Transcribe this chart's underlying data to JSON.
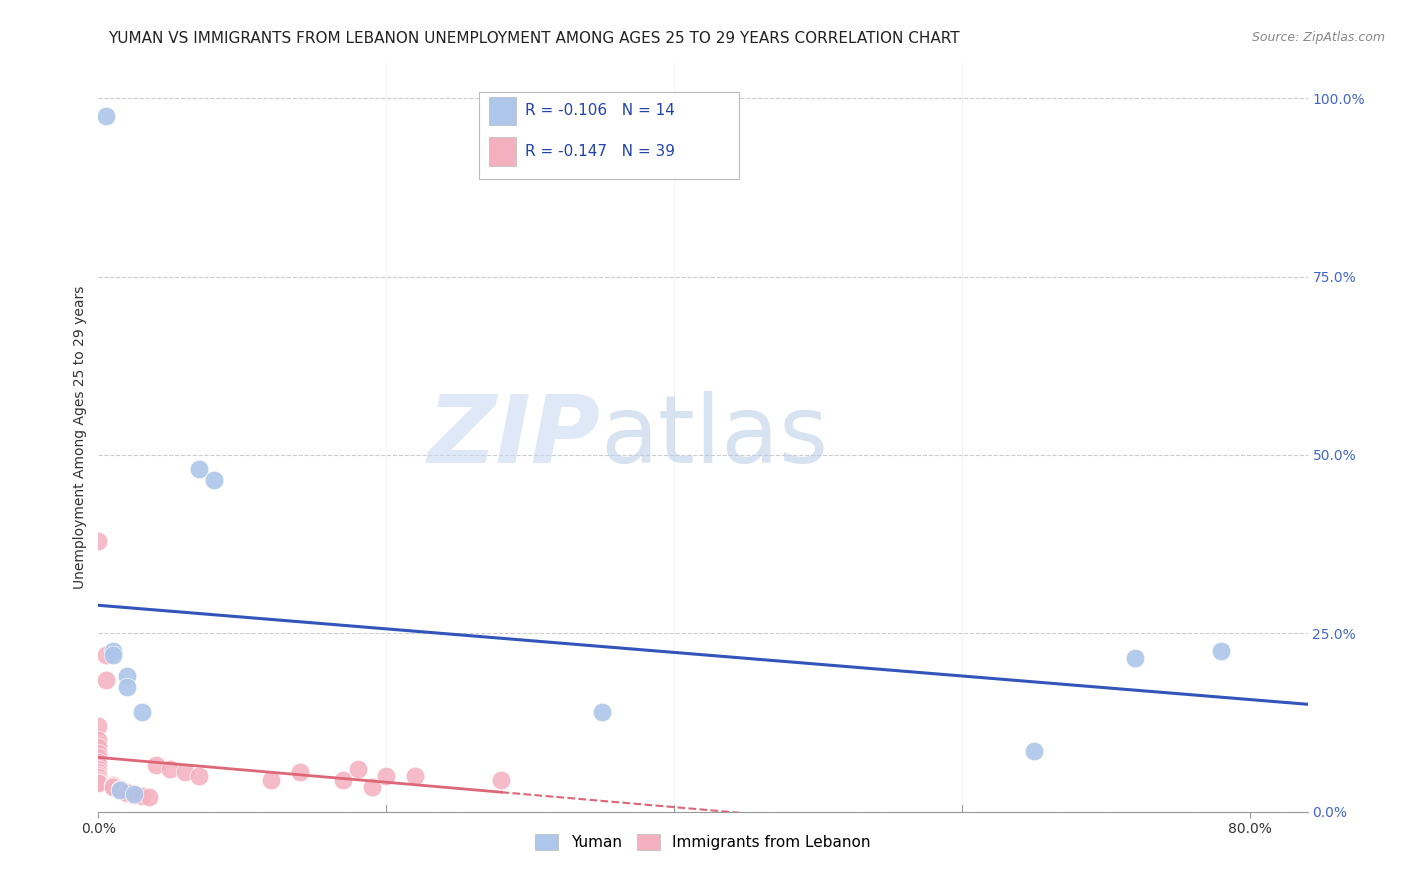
{
  "title": "YUMAN VS IMMIGRANTS FROM LEBANON UNEMPLOYMENT AMONG AGES 25 TO 29 YEARS CORRELATION CHART",
  "source": "Source: ZipAtlas.com",
  "ylabel": "Unemployment Among Ages 25 to 29 years",
  "legend_bottom": [
    "Yuman",
    "Immigrants from Lebanon"
  ],
  "watermark_zip": "ZIP",
  "watermark_atlas": "atlas",
  "yuman_color": "#adc6ea",
  "lebanon_color": "#f5b0bf",
  "yuman_line_color": "#3355bb",
  "lebanon_line_color": "#dd6677",
  "R_yuman": "-0.106",
  "N_yuman": "14",
  "R_lebanon": "-0.147",
  "N_lebanon": "39",
  "yuman_points": [
    [
      0.005,
      0.975
    ],
    [
      0.07,
      0.48
    ],
    [
      0.08,
      0.465
    ],
    [
      0.01,
      0.225
    ],
    [
      0.02,
      0.19
    ],
    [
      0.015,
      0.03
    ],
    [
      0.025,
      0.025
    ],
    [
      0.35,
      0.14
    ],
    [
      0.65,
      0.085
    ],
    [
      0.72,
      0.215
    ],
    [
      0.78,
      0.225
    ],
    [
      0.01,
      0.22
    ],
    [
      0.02,
      0.175
    ],
    [
      0.03,
      0.14
    ]
  ],
  "lebanon_points": [
    [
      0.0,
      0.38
    ],
    [
      0.005,
      0.22
    ],
    [
      0.005,
      0.185
    ],
    [
      0.0,
      0.12
    ],
    [
      0.0,
      0.1
    ],
    [
      0.0,
      0.09
    ],
    [
      0.0,
      0.082
    ],
    [
      0.0,
      0.076
    ],
    [
      0.0,
      0.07
    ],
    [
      0.0,
      0.065
    ],
    [
      0.0,
      0.06
    ],
    [
      0.0,
      0.055
    ],
    [
      0.0,
      0.052
    ],
    [
      0.0,
      0.048
    ],
    [
      0.0,
      0.045
    ],
    [
      0.0,
      0.042
    ],
    [
      0.0,
      0.04
    ],
    [
      0.01,
      0.038
    ],
    [
      0.01,
      0.036
    ],
    [
      0.01,
      0.034
    ],
    [
      0.015,
      0.032
    ],
    [
      0.015,
      0.03
    ],
    [
      0.02,
      0.028
    ],
    [
      0.02,
      0.026
    ],
    [
      0.025,
      0.024
    ],
    [
      0.03,
      0.022
    ],
    [
      0.035,
      0.02
    ],
    [
      0.04,
      0.065
    ],
    [
      0.05,
      0.06
    ],
    [
      0.06,
      0.055
    ],
    [
      0.07,
      0.05
    ],
    [
      0.12,
      0.045
    ],
    [
      0.14,
      0.055
    ],
    [
      0.17,
      0.045
    ],
    [
      0.18,
      0.06
    ],
    [
      0.19,
      0.035
    ],
    [
      0.2,
      0.05
    ],
    [
      0.22,
      0.05
    ],
    [
      0.28,
      0.045
    ]
  ],
  "grid_color": "#cccccc",
  "background_color": "#ffffff",
  "title_fontsize": 11,
  "axis_label_fontsize": 10,
  "tick_fontsize": 10,
  "source_fontsize": 9,
  "xlim": [
    0.0,
    0.84
  ],
  "ylim": [
    0.0,
    1.05
  ],
  "yticks": [
    0.0,
    0.25,
    0.5,
    0.75,
    1.0
  ],
  "ytick_labels_right": [
    "0.0%",
    "25.0%",
    "50.0%",
    "75.0%",
    "100.0%"
  ],
  "xtick_left_label": "0.0%",
  "xtick_right_label": "80.0%"
}
